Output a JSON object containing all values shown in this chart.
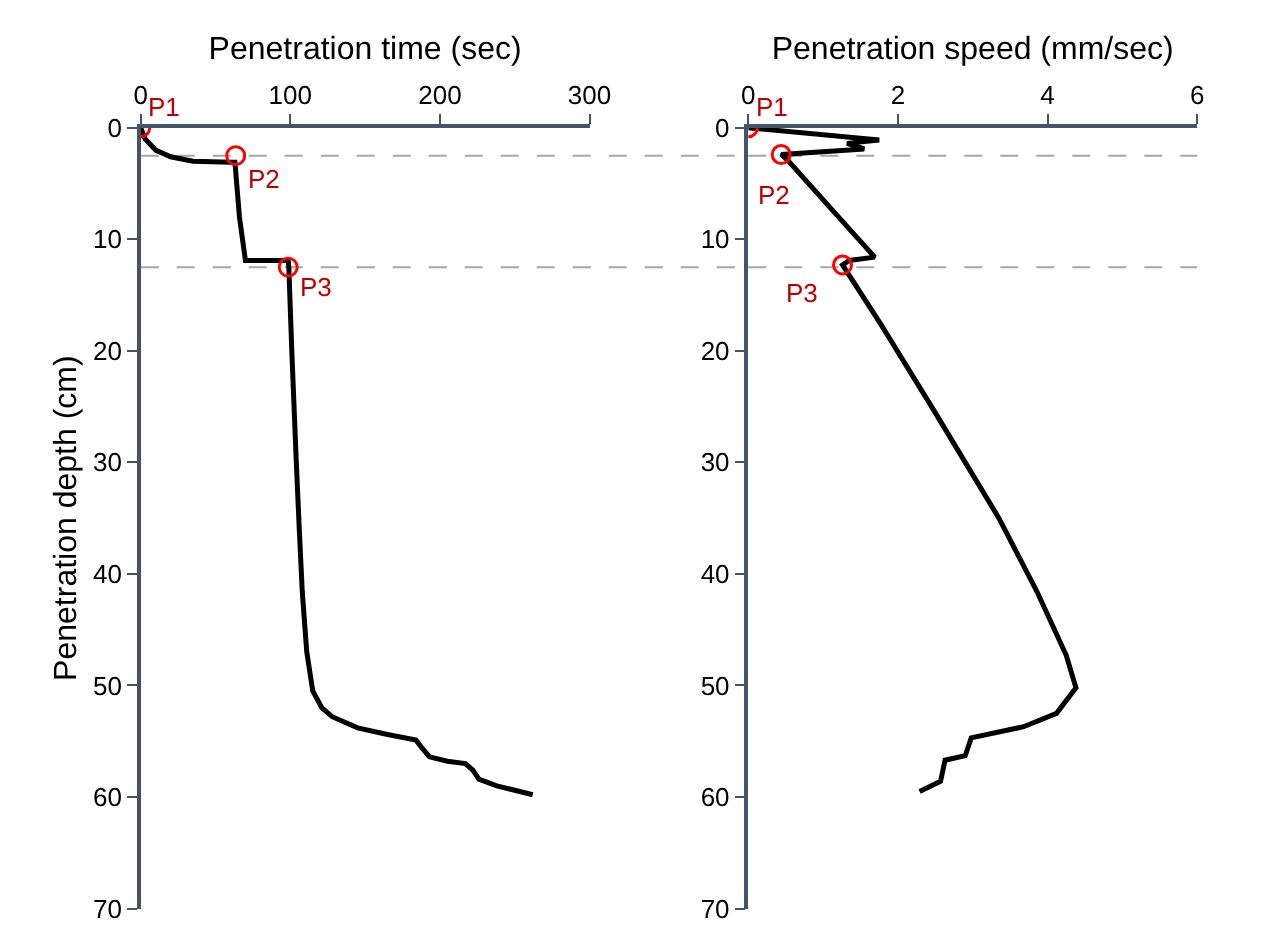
{
  "chart_data": [
    {
      "type": "line",
      "xlabel": "Penetration time (sec)",
      "ylabel": "Penetration depth (cm)",
      "xlim": [
        0,
        300
      ],
      "xticks": [
        0,
        100,
        200,
        300
      ],
      "ylim": [
        70,
        0
      ],
      "yticks": [
        0,
        10,
        20,
        30,
        40,
        50,
        60,
        70
      ],
      "grid": false,
      "marker": "none",
      "line_style": "solid",
      "series": [
        {
          "color": "#000000",
          "x": [
            0,
            3,
            10,
            20,
            35,
            60,
            63,
            66,
            70,
            98.6,
            99,
            101,
            104,
            106,
            108,
            111,
            115,
            121,
            128,
            145,
            165,
            184,
            188,
            193,
            205,
            217,
            222,
            226,
            238,
            250,
            262
          ],
          "values": [
            0,
            1,
            2,
            2.6,
            3,
            3.1,
            3.1,
            8,
            11.9,
            11.9,
            12.5,
            20,
            30,
            36,
            41.6,
            47,
            50.5,
            52,
            52.8,
            53.8,
            54.4,
            54.9,
            55.6,
            56.4,
            56.8,
            57,
            57.6,
            58.4,
            59,
            59.4,
            59.8
          ]
        },
        {
          "type": "scatter",
          "marker": "circle",
          "color": "#ff0000",
          "x": [
            0,
            63.5,
            98.6
          ],
          "values": [
            0,
            2.5,
            12.5
          ]
        }
      ],
      "ref_lines": [
        {
          "axis": "y",
          "value": 2.5,
          "color": "#a6a6a6",
          "line_style": "dashed"
        },
        {
          "axis": "y",
          "value": 12.5,
          "color": "#a6a6a6",
          "line_style": "dashed"
        }
      ],
      "annotations": [
        {
          "text": "P1",
          "x": 0,
          "y": 0
        },
        {
          "text": "P2",
          "x": 63.5,
          "y": 2.5
        },
        {
          "text": "P3",
          "x": 98.6,
          "y": 12.5
        }
      ]
    },
    {
      "type": "line",
      "xlabel": "Penetration speed (mm/sec)",
      "xlim": [
        0,
        6
      ],
      "xticks": [
        0,
        2,
        4,
        6
      ],
      "ylim": [
        70,
        0
      ],
      "yticks": [
        0,
        10,
        20,
        30,
        40,
        50,
        60,
        70
      ],
      "grid": false,
      "marker": "none",
      "line_style": "solid",
      "series": [
        {
          "color": "#000000",
          "x": [
            0,
            1.75,
            1.32,
            1.55,
            0.44,
            0.54,
            1.1,
            1.69,
            1.35,
            1.26,
            1.76,
            2.45,
            2.9,
            3.35,
            3.86,
            4.25,
            4.38,
            4.12,
            3.68,
            2.98,
            2.9,
            2.63,
            2.57,
            2.29
          ],
          "values": [
            0,
            1.1,
            1.4,
            1.9,
            2.4,
            3.0,
            7.2,
            11.6,
            11.9,
            12.3,
            17.5,
            25,
            30,
            35,
            41.6,
            47.3,
            50.2,
            52.5,
            53.7,
            54.7,
            56.3,
            56.7,
            58.6,
            59.5
          ]
        },
        {
          "type": "scatter",
          "marker": "circle",
          "color": "#ff0000",
          "x": [
            0,
            0.44,
            1.26
          ],
          "values": [
            0,
            2.4,
            12.3
          ]
        }
      ],
      "ref_lines": [
        {
          "axis": "y",
          "value": 2.5,
          "color": "#a6a6a6",
          "line_style": "dashed"
        },
        {
          "axis": "y",
          "value": 12.5,
          "color": "#a6a6a6",
          "line_style": "dashed"
        }
      ],
      "annotations": [
        {
          "text": "P1",
          "x": 0,
          "y": 0
        },
        {
          "text": "P2",
          "x": 0.44,
          "y": 2.4
        },
        {
          "text": "P3",
          "x": 1.26,
          "y": 12.3
        }
      ]
    }
  ]
}
